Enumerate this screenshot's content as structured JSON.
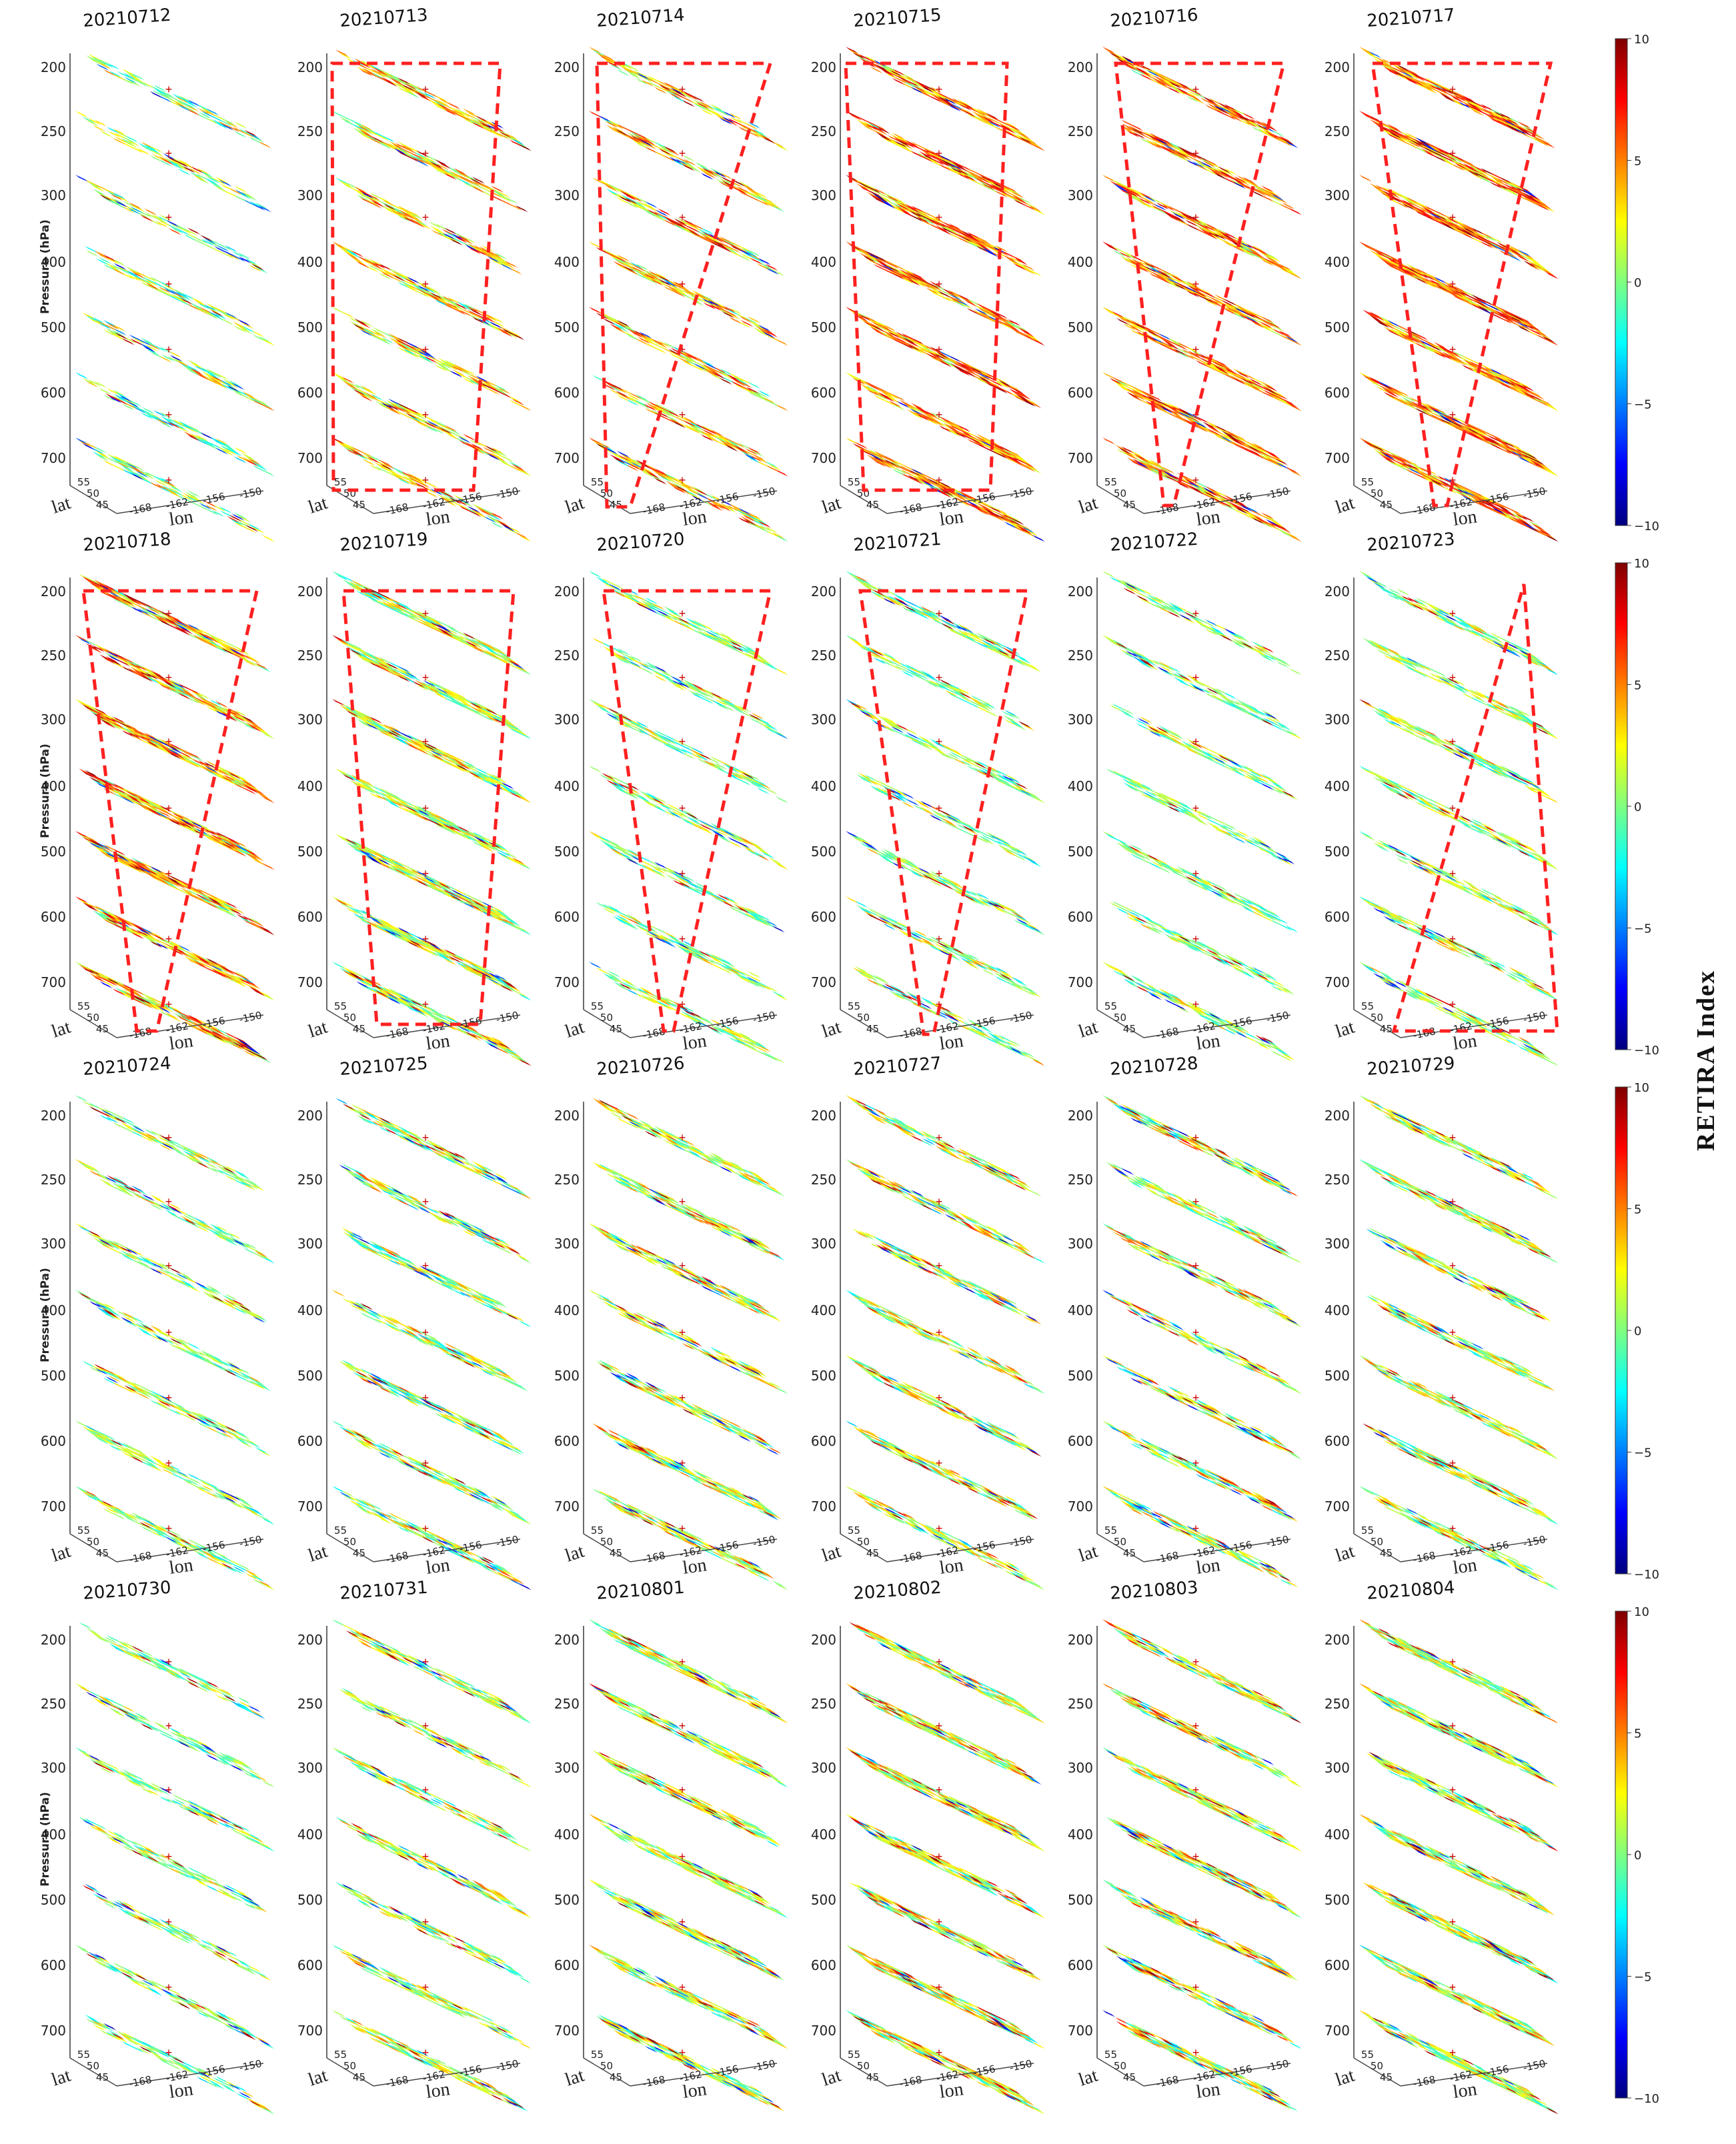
{
  "chart_data": {
    "type": "heatmap",
    "panels": [
      {
        "date": "20210712",
        "highlight": false
      },
      {
        "date": "20210713",
        "highlight": true
      },
      {
        "date": "20210714",
        "highlight": true
      },
      {
        "date": "20210715",
        "highlight": true
      },
      {
        "date": "20210716",
        "highlight": true
      },
      {
        "date": "20210717",
        "highlight": true
      },
      {
        "date": "20210718",
        "highlight": true
      },
      {
        "date": "20210719",
        "highlight": true
      },
      {
        "date": "20210720",
        "highlight": true
      },
      {
        "date": "20210721",
        "highlight": true
      },
      {
        "date": "20210722",
        "highlight": false
      },
      {
        "date": "20210723",
        "highlight": true
      },
      {
        "date": "20210724",
        "highlight": false
      },
      {
        "date": "20210725",
        "highlight": false
      },
      {
        "date": "20210726",
        "highlight": false
      },
      {
        "date": "20210727",
        "highlight": false
      },
      {
        "date": "20210728",
        "highlight": false
      },
      {
        "date": "20210729",
        "highlight": false
      },
      {
        "date": "20210730",
        "highlight": false
      },
      {
        "date": "20210731",
        "highlight": false
      },
      {
        "date": "20210801",
        "highlight": false
      },
      {
        "date": "20210802",
        "highlight": false
      },
      {
        "date": "20210803",
        "highlight": false
      },
      {
        "date": "20210804",
        "highlight": false
      }
    ],
    "z_axis": {
      "label": "Pressure (hPa)",
      "ticks": [
        "200",
        "250",
        "300",
        "400",
        "500",
        "600",
        "700"
      ]
    },
    "lat_axis": {
      "label": "lat",
      "ticks": [
        "45",
        "50",
        "55"
      ]
    },
    "lon_axis": {
      "label": "lon",
      "ticks": [
        "-168",
        "-162",
        "-156",
        "-150"
      ]
    },
    "colorbar": {
      "label": "RETIRA Index",
      "range": [
        -10,
        10
      ],
      "ticks": [
        "10",
        "5",
        "0",
        "−5",
        "−10"
      ],
      "colormap": [
        "#00007f",
        "#0000ff",
        "#007fff",
        "#00ffff",
        "#7fff7f",
        "#ffff00",
        "#ff7f00",
        "#ff0000",
        "#7f0000"
      ]
    },
    "highlight_color": "#ff2020"
  }
}
